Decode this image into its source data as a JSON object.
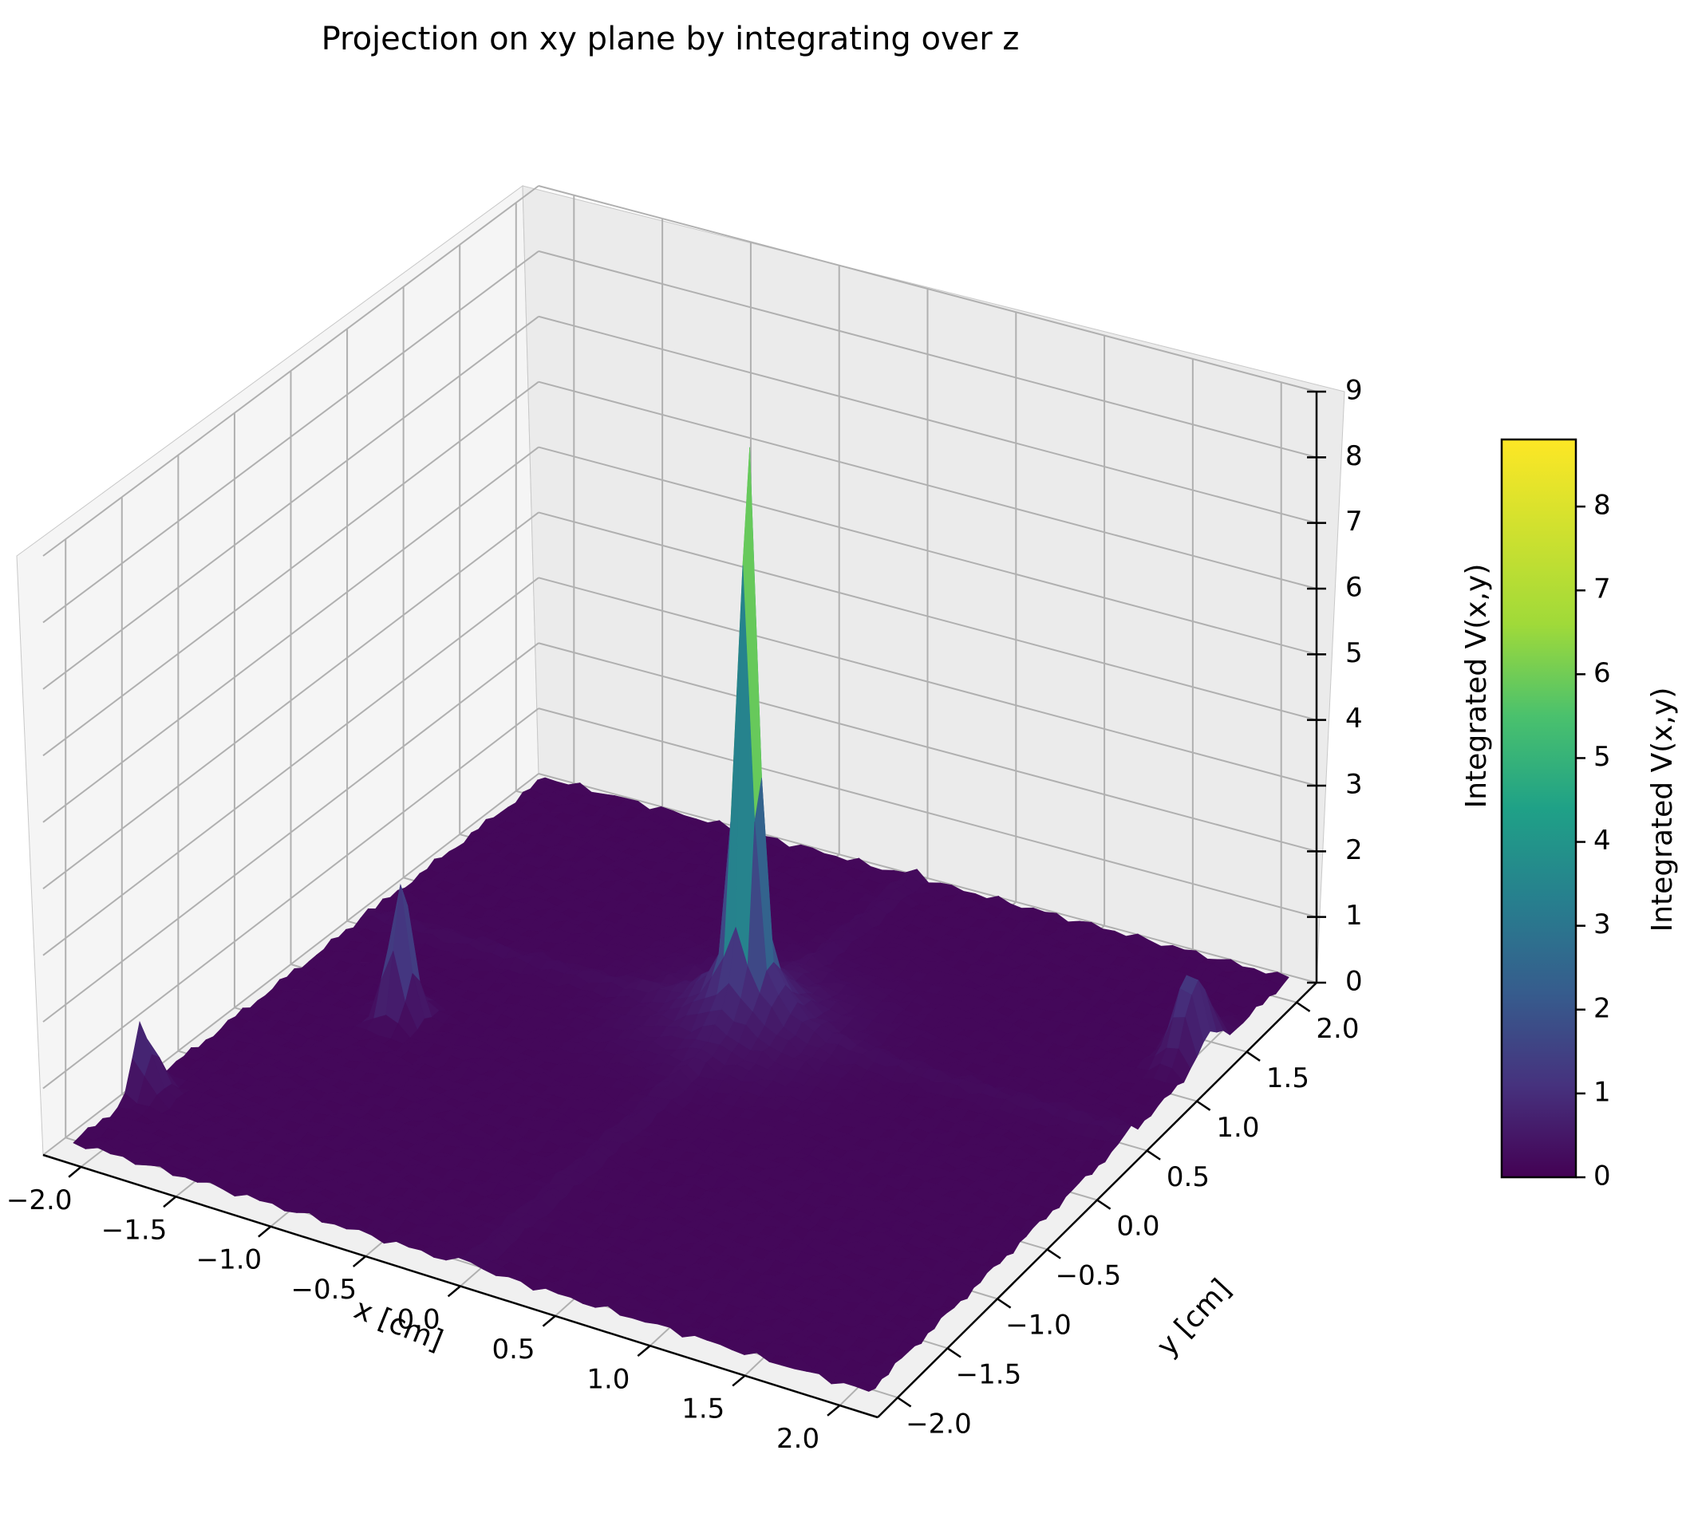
{
  "chart_data": {
    "type": "surface",
    "title": "Projection on xy plane by integrating over z",
    "xlabel": "x [cm]",
    "ylabel": "y [cm]",
    "zlabel": "Integrated V(x,y)",
    "xlim": [
      -2.2,
      2.2
    ],
    "ylim": [
      -2.2,
      2.2
    ],
    "zlim": [
      0,
      9
    ],
    "xticks": [
      "−2.0",
      "−1.5",
      "−1.0",
      "−0.5",
      "0.0",
      "0.5",
      "1.0",
      "1.5",
      "2.0"
    ],
    "yticks": [
      "−2.0",
      "−1.5",
      "−1.0",
      "−0.5",
      "0.0",
      "0.5",
      "1.0",
      "1.5",
      "2.0"
    ],
    "zticks": [
      "0",
      "1",
      "2",
      "3",
      "4",
      "5",
      "6",
      "7",
      "8",
      "9"
    ],
    "baseline": 0.15,
    "peaks": [
      {
        "x": 0.0,
        "y": 0.5,
        "z": 8.6
      },
      {
        "x": -1.45,
        "y": -0.25,
        "z": 2.1
      },
      {
        "x": 2.0,
        "y": 1.3,
        "z": 1.3
      },
      {
        "x": -2.1,
        "y": -1.5,
        "z": 1.0
      }
    ],
    "colormap": "viridis",
    "colorbar": {
      "label": "Integrated V(x,y)",
      "range": [
        0,
        8.8
      ],
      "ticks": [
        "0",
        "1",
        "2",
        "3",
        "4",
        "5",
        "6",
        "7",
        "8"
      ]
    },
    "grid": true
  }
}
